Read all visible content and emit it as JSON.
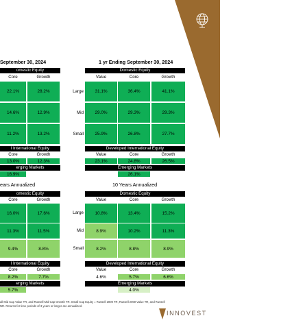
{
  "left_top_title": "September 30, 2024",
  "right_top_title": "1 yr Ending September 30, 2024",
  "left_bottom_title": "ears Annualized",
  "right_bottom_title": "10 Years Annualized",
  "bars": {
    "domestic_left": "omestic Equity",
    "domestic_right": "Domestic Equity",
    "intl_left": "l International Equity",
    "intl_right": "Developed International Equity",
    "em_left": "erging Markets",
    "em_right": "Emerging Markets"
  },
  "col_headers_left": [
    "Core",
    "Growth"
  ],
  "col_headers_right": [
    "Value",
    "Core",
    "Growth"
  ],
  "row_labels": [
    "Large",
    "Mid",
    "Small"
  ],
  "top_left_grid": [
    [
      "22.1%",
      "28.2%"
    ],
    [
      "14.6%",
      "12.9%"
    ],
    [
      "11.2%",
      "13.2%"
    ]
  ],
  "top_right_grid": [
    [
      "31.1%",
      "36.4%",
      "41.1%"
    ],
    [
      "29.0%",
      "29.3%",
      "29.3%"
    ],
    [
      "25.9%",
      "26.8%",
      "27.7%"
    ]
  ],
  "top_left_intl": [
    "13.0%",
    "12.3%"
  ],
  "top_right_intl": [
    "23.1%",
    "24.8%",
    "26.5%"
  ],
  "top_left_em": "16.9%",
  "top_right_em": "26.1%",
  "bottom_left_grid": [
    [
      "16.0%",
      "17.6%"
    ],
    [
      "11.3%",
      "11.5%"
    ],
    [
      "9.4%",
      "8.8%"
    ]
  ],
  "bottom_right_grid": [
    [
      "10.8%",
      "13.4%",
      "15.2%"
    ],
    [
      "8.9%",
      "10.2%",
      "11.3%"
    ],
    [
      "8.2%",
      "8.8%",
      "8.9%"
    ]
  ],
  "bottom_left_intl": [
    "8.2%",
    "7.7%"
  ],
  "bottom_right_intl": [
    "4.6%",
    "5.7%",
    "6.6%"
  ],
  "bottom_left_em": "5.7%",
  "bottom_right_em": "4.0%",
  "footnote_line1": "all Mid Cap Value TR, and Russell Mid Cap Growth TR. Small Cap Equity = Russell 2000 TR, Russell 2000 Value TR, and Russell",
  "footnote_line2": "NR. Returns for time periods of 3 years or longer are annualized.",
  "logo_text": "INNOVEST",
  "colors": {
    "strong_green": "#0fae55",
    "light_green": "#8fd36a",
    "pale_green": "#d7f0c6",
    "brown": "#9a6a2f"
  }
}
